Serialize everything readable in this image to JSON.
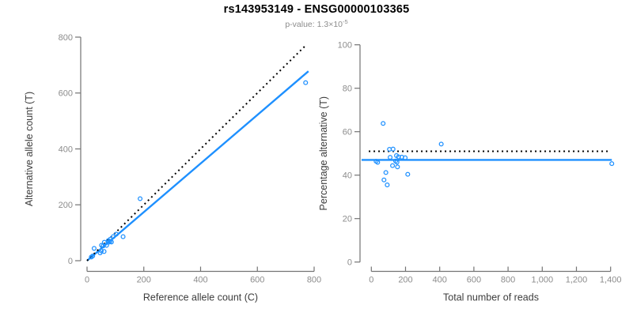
{
  "header": {
    "title": "rs143953149 - ENSG00000103365",
    "p_prefix": "p-value: 1.3",
    "p_times": "×10",
    "p_exponent": "-5"
  },
  "colors": {
    "accent_blue": "#1E90FF",
    "identity_black": "#000000",
    "axis_line": "#737373",
    "tick_text": "#8c8c8c",
    "axis_label_text": "#3d3d3d",
    "title_text": "#000000",
    "subtitle_text": "#8c8c8c"
  },
  "chart_data": [
    {
      "type": "scatter",
      "title": "",
      "xlabel": "Reference allele count (C)",
      "ylabel": "Alternative allele count (T)",
      "xlim": [
        0,
        800
      ],
      "ylim": [
        0,
        800
      ],
      "grid": false,
      "xticks": [
        0,
        200,
        400,
        600,
        800
      ],
      "xticklabels": [
        "0",
        "200",
        "400",
        "600",
        "800"
      ],
      "yticks": [
        0,
        200,
        400,
        600,
        800
      ],
      "yticklabels": [
        "0",
        "200",
        "400",
        "600",
        "800"
      ],
      "points": [
        [
          15,
          13
        ],
        [
          20,
          17
        ],
        [
          25,
          44
        ],
        [
          46,
          28
        ],
        [
          50,
          35
        ],
        [
          60,
          33
        ],
        [
          51,
          55
        ],
        [
          57,
          53
        ],
        [
          69,
          55
        ],
        [
          61,
          66
        ],
        [
          76,
          66
        ],
        [
          75,
          72
        ],
        [
          81,
          69
        ],
        [
          86,
          67
        ],
        [
          82,
          77
        ],
        [
          92,
          86
        ],
        [
          103,
          95
        ],
        [
          127,
          86
        ],
        [
          187,
          222
        ],
        [
          770,
          637
        ]
      ],
      "lines": [
        {
          "name": "fit-line",
          "style": "solid",
          "color": "#1E90FF",
          "x": [
            0,
            780
          ],
          "y": [
            0,
            678
          ]
        },
        {
          "name": "identity-line",
          "style": "dotted",
          "color": "#000000",
          "x": [
            0,
            772
          ],
          "y": [
            0,
            772
          ]
        }
      ]
    },
    {
      "type": "scatter",
      "title": "",
      "xlabel": "Total number of reads",
      "ylabel": "Percentage alternative (T)",
      "xlim": [
        0,
        1400
      ],
      "ylim": [
        0,
        100
      ],
      "grid": false,
      "xticks": [
        0,
        200,
        400,
        600,
        800,
        1000,
        1200,
        1400
      ],
      "xticklabels": [
        "0",
        "200",
        "400",
        "600",
        "800",
        "1,000",
        "1,200",
        "1,400"
      ],
      "yticks": [
        0,
        20,
        40,
        60,
        80,
        100
      ],
      "yticklabels": [
        "0",
        "20",
        "40",
        "60",
        "80",
        "100"
      ],
      "points": [
        [
          28,
          46.4
        ],
        [
          37,
          45.9
        ],
        [
          69,
          63.8
        ],
        [
          74,
          37.8
        ],
        [
          85,
          41.2
        ],
        [
          93,
          35.5
        ],
        [
          106,
          51.9
        ],
        [
          110,
          48.2
        ],
        [
          124,
          44.4
        ],
        [
          127,
          52.0
        ],
        [
          142,
          46.5
        ],
        [
          147,
          49.0
        ],
        [
          150,
          46.0
        ],
        [
          153,
          43.8
        ],
        [
          159,
          48.4
        ],
        [
          178,
          48.3
        ],
        [
          198,
          48.0
        ],
        [
          213,
          40.4
        ],
        [
          409,
          54.3
        ],
        [
          1407,
          45.3
        ]
      ],
      "lines": [
        {
          "name": "mean-line",
          "style": "solid",
          "color": "#1E90FF",
          "x": [
            -57,
            1407
          ],
          "y": [
            47,
            47
          ]
        },
        {
          "name": "expected-line",
          "style": "dotted",
          "color": "#000000",
          "x": [
            -15,
            1385
          ],
          "y": [
            51,
            51
          ]
        }
      ]
    }
  ]
}
